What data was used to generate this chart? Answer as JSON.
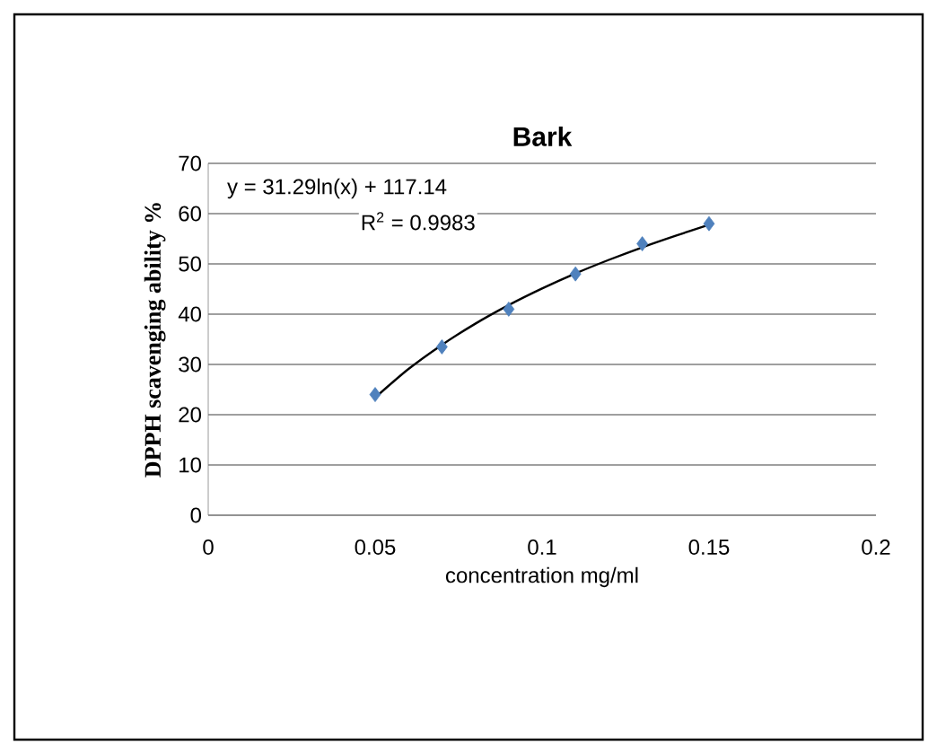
{
  "chart_data": {
    "type": "scatter",
    "title": "Bark",
    "xlabel": "concentration mg/ml",
    "ylabel": "DPPH scavenging ability %",
    "annotations": [
      "y = 31.29ln(x) + 117.14",
      "R$^{2}$ = 0.9983"
    ],
    "xlim": [
      0,
      0.2
    ],
    "xticks": [
      0,
      0.05,
      0.1,
      0.15,
      0.2
    ],
    "ylim": [
      0,
      70
    ],
    "yticks": [
      0,
      10,
      20,
      30,
      40,
      50,
      60,
      70
    ],
    "grid": "y",
    "marker": "diamond",
    "series": [
      {
        "color": "#4f81bd",
        "x": [
          0.05,
          0.07,
          0.09,
          0.11,
          0.13,
          0.15
        ],
        "values": [
          24,
          33.5,
          41,
          48,
          54,
          58
        ]
      },
      {
        "type": "line",
        "color": "#000000",
        "marker": "none",
        "line_style": "solid",
        "x": [
          0.05,
          0.06,
          0.07,
          0.08,
          0.09,
          0.1,
          0.11,
          0.12,
          0.13,
          0.14,
          0.15
        ],
        "values": [
          23.4,
          29.1,
          33.9,
          38.1,
          41.8,
          45.1,
          48.1,
          50.8,
          53.3,
          55.6,
          57.8
        ]
      }
    ]
  }
}
